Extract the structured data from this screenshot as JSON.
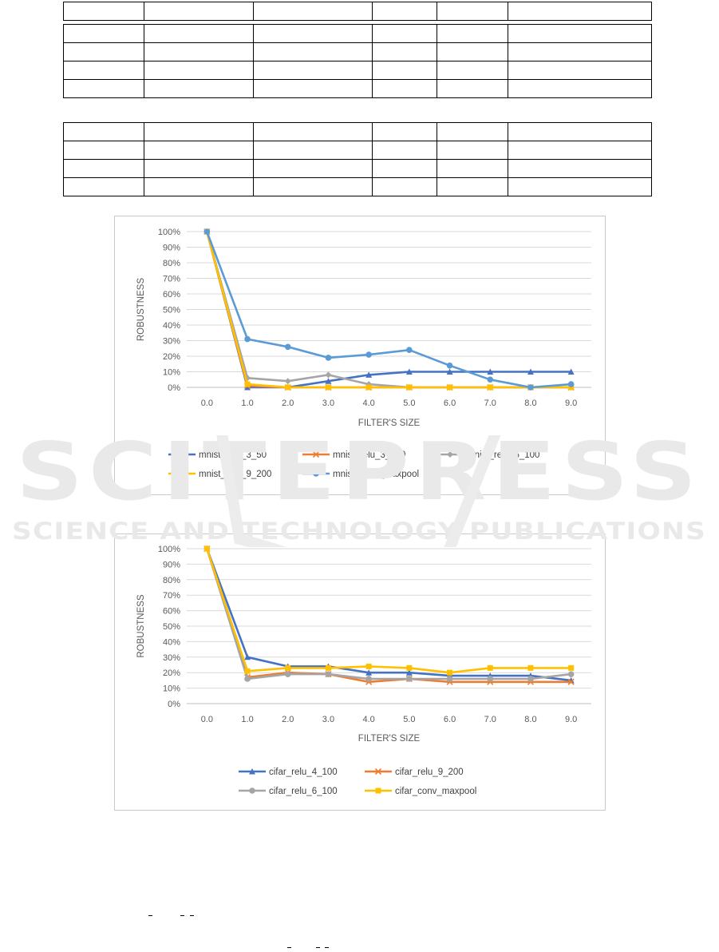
{
  "watermark": {
    "big": "SCITEPRESS",
    "small": "SCIENCE AND TECHNOLOGY PUBLICATIONS"
  },
  "chart_data": [
    {
      "type": "line",
      "xlabel": "FILTER'S SIZE",
      "ylabel": "ROBUSTNESS",
      "categories": [
        "0.0",
        "1.0",
        "2.0",
        "3.0",
        "4.0",
        "5.0",
        "6.0",
        "7.0",
        "8.0",
        "9.0"
      ],
      "ylim": [
        0,
        100
      ],
      "yticks": [
        "0%",
        "10%",
        "20%",
        "30%",
        "40%",
        "50%",
        "60%",
        "70%",
        "80%",
        "90%",
        "100%"
      ],
      "grid": true,
      "legend": "bottom",
      "series": [
        {
          "name": "mnist_relu_3_50",
          "color": "#4472C4",
          "marker": "triangle",
          "values": [
            100,
            0,
            0,
            4,
            8,
            10,
            10,
            10,
            10,
            10
          ]
        },
        {
          "name": "mnist_relu_3_100",
          "color": "#ED7D31",
          "marker": "x",
          "values": [
            100,
            1,
            0,
            0,
            0,
            0,
            0,
            0,
            0,
            0
          ]
        },
        {
          "name": "mnist_relu_6_100",
          "color": "#A5A5A5",
          "marker": "diamond",
          "values": [
            100,
            6,
            4,
            8,
            2,
            0,
            0,
            0,
            0,
            0
          ]
        },
        {
          "name": "mnist_relu_9_200",
          "color": "#FFC000",
          "marker": "square",
          "values": [
            100,
            2,
            0,
            0,
            0,
            0,
            0,
            0,
            0,
            0
          ]
        },
        {
          "name": "mnist_conv_maxpool",
          "color": "#5B9BD5",
          "marker": "circle",
          "values": [
            100,
            31,
            26,
            19,
            21,
            24,
            14,
            5,
            0,
            2
          ]
        }
      ]
    },
    {
      "type": "line",
      "xlabel": "FILTER'S SIZE",
      "ylabel": "ROBUSTNESS",
      "categories": [
        "0.0",
        "1.0",
        "2.0",
        "3.0",
        "4.0",
        "5.0",
        "6.0",
        "7.0",
        "8.0",
        "9.0"
      ],
      "ylim": [
        0,
        100
      ],
      "yticks": [
        "0%",
        "10%",
        "20%",
        "30%",
        "40%",
        "50%",
        "60%",
        "70%",
        "80%",
        "90%",
        "100%"
      ],
      "grid": true,
      "legend": "bottom",
      "series": [
        {
          "name": "cifar_relu_4_100",
          "color": "#4472C4",
          "marker": "triangle",
          "values": [
            100,
            30,
            24,
            24,
            20,
            20,
            18,
            18,
            18,
            15
          ]
        },
        {
          "name": "cifar_relu_9_200",
          "color": "#ED7D31",
          "marker": "x",
          "values": [
            100,
            17,
            20,
            19,
            14,
            16,
            14,
            14,
            14,
            14
          ]
        },
        {
          "name": "cifar_relu_6_100",
          "color": "#A5A5A5",
          "marker": "circle",
          "values": [
            100,
            16,
            19,
            19,
            16,
            16,
            16,
            16,
            16,
            19
          ]
        },
        {
          "name": "cifar_conv_maxpool",
          "color": "#FFC000",
          "marker": "square",
          "values": [
            100,
            21,
            23,
            23,
            24,
            23,
            20,
            23,
            23,
            23
          ]
        }
      ]
    }
  ]
}
